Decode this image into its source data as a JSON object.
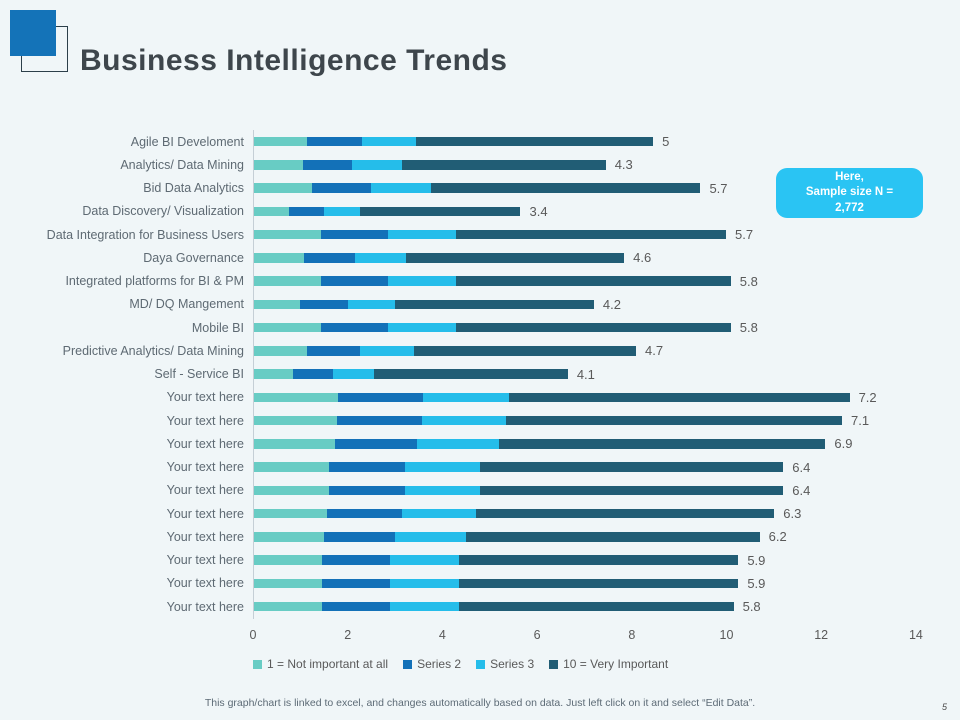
{
  "slide": {
    "title": "Business Intelligence Trends",
    "page_number": "5",
    "footer": "This graph/chart is linked to excel, and changes automatically based on data. Just left click on it and select “Edit Data”."
  },
  "callout": {
    "line1": "Here,",
    "line2": "Sample size N =",
    "line3": "2,772",
    "bg_color": "#2ac4f3"
  },
  "logo": {
    "fill_color": "#1473b8",
    "outline_color": "#2c3f4a"
  },
  "chart_data": {
    "type": "bar",
    "orientation": "horizontal",
    "stacked": true,
    "grid": false,
    "legend_position": "bottom",
    "x_axis": {
      "min": 0,
      "max": 14,
      "ticks": [
        0,
        2,
        4,
        6,
        8,
        10,
        12,
        14
      ]
    },
    "colors": [
      "#68ccc4",
      "#1371b8",
      "#25bdea",
      "#215d75"
    ],
    "categories": [
      "Agile BI Develoment",
      "Analytics/ Data Mining",
      "Bid Data Analytics",
      "Data Discovery/ Visualization",
      "Data Integration for Business Users",
      "Daya Governance",
      "Integrated platforms for BI & PM",
      "MD/ DQ Mangement",
      "Mobile BI",
      "Predictive Analytics/ Data Mining",
      "Self - Service BI",
      "Your text here",
      "Your text here",
      "Your text here",
      "Your text here",
      "Your text here",
      "Your text here",
      "Your text here",
      "Your text here",
      "Your text here",
      "Your text here"
    ],
    "series": [
      {
        "name": "1 = Not important at all",
        "values": [
          1.15,
          1.05,
          1.25,
          0.75,
          1.43,
          1.08,
          1.43,
          1.0,
          1.43,
          1.13,
          0.85,
          1.8,
          1.78,
          1.73,
          1.6,
          1.6,
          1.57,
          1.5,
          1.45,
          1.45,
          1.45
        ]
      },
      {
        "name": "Series 2",
        "values": [
          1.15,
          1.05,
          1.25,
          0.75,
          1.43,
          1.08,
          1.43,
          1.0,
          1.43,
          1.13,
          0.85,
          1.8,
          1.78,
          1.73,
          1.6,
          1.6,
          1.57,
          1.5,
          1.45,
          1.45,
          1.45
        ]
      },
      {
        "name": "Series 3",
        "values": [
          1.15,
          1.05,
          1.25,
          0.75,
          1.43,
          1.08,
          1.43,
          1.0,
          1.43,
          1.13,
          0.85,
          1.8,
          1.78,
          1.73,
          1.6,
          1.6,
          1.57,
          1.5,
          1.45,
          1.45,
          1.45
        ]
      },
      {
        "name": "10 = Very Important",
        "values": [
          5,
          4.3,
          5.7,
          3.4,
          5.7,
          4.6,
          5.8,
          4.2,
          5.8,
          4.7,
          4.1,
          7.2,
          7.1,
          6.9,
          6.4,
          6.4,
          6.3,
          6.2,
          5.9,
          5.9,
          5.8
        ]
      }
    ],
    "data_labels": [
      "5",
      "4.3",
      "5.7",
      "3.4",
      "5.7",
      "4.6",
      "5.8",
      "4.2",
      "5.8",
      "4.7",
      "4.1",
      "7.2",
      "7.1",
      "6.9",
      "6.4",
      "6.4",
      "6.3",
      "6.2",
      "5.9",
      "5.9",
      "5.8"
    ],
    "legend": [
      "1 = Not important at all",
      "Series 2",
      "Series 3",
      "10 = Very Important"
    ],
    "title": "Business Intelligence Trends"
  }
}
